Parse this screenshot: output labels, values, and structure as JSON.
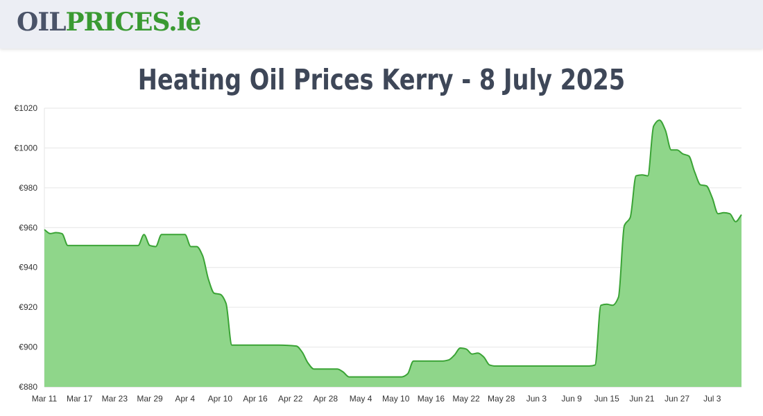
{
  "header": {
    "logo": {
      "part1": "OIL",
      "part2": "PRICES",
      "part3": ".ie"
    }
  },
  "page_title": "Heating Oil Prices Kerry - 8 July 2025",
  "colors": {
    "line": "#3aa335",
    "fill": "#8fd68a",
    "grid": "#e6e6e6",
    "title": "#3e4758"
  },
  "chart_data": {
    "type": "area",
    "title": "",
    "xlabel": "",
    "ylabel": "",
    "ylim": [
      880,
      1020
    ],
    "y_ticks": [
      "€880",
      "€900",
      "€920",
      "€940",
      "€960",
      "€980",
      "€1000",
      "€1020"
    ],
    "y_tick_values": [
      880,
      900,
      920,
      940,
      960,
      980,
      1000,
      1020
    ],
    "x_ticks": [
      "Mar 11",
      "Mar 17",
      "Mar 23",
      "Mar 29",
      "Apr 4",
      "Apr 10",
      "Apr 16",
      "Apr 22",
      "Apr 28",
      "May 4",
      "May 10",
      "May 16",
      "May 22",
      "May 28",
      "Jun 3",
      "Jun 9",
      "Jun 15",
      "Jun 21",
      "Jun 27",
      "Jul 3"
    ],
    "x_tick_days": [
      0,
      6,
      12,
      18,
      24,
      30,
      36,
      42,
      48,
      54,
      60,
      66,
      72,
      78,
      84,
      90,
      96,
      102,
      108,
      114
    ],
    "x_range_days": [
      0,
      119
    ],
    "grid": true,
    "series": [
      {
        "x": [
          0,
          1,
          2,
          3,
          4,
          5,
          6,
          12,
          15,
          16,
          17,
          18,
          19,
          20,
          22,
          24,
          25,
          26,
          27,
          28,
          29,
          30,
          31,
          32,
          33,
          35,
          36,
          40,
          43,
          44,
          45,
          46,
          48,
          50,
          51,
          52,
          53,
          60,
          61,
          62,
          63,
          64,
          67,
          68,
          69,
          70,
          71,
          72,
          73,
          74,
          75,
          76,
          77,
          78,
          82,
          90,
          93,
          94,
          95,
          96,
          97,
          98,
          99,
          100,
          101,
          102,
          103,
          104,
          105,
          106,
          107,
          108,
          109,
          110,
          111,
          112,
          113,
          114,
          115,
          116,
          117,
          118,
          119
        ],
        "values": [
          959,
          957,
          957.5,
          957,
          951,
          951,
          951,
          951,
          951,
          951,
          956.5,
          951,
          950.5,
          956.5,
          956.5,
          956.5,
          950.5,
          950.5,
          946,
          934,
          927,
          926.5,
          922,
          901,
          901,
          901,
          901,
          901,
          900.5,
          897.5,
          892,
          889,
          889,
          889,
          887.5,
          885,
          885,
          885,
          885,
          886.5,
          893,
          893,
          893,
          893,
          893.5,
          896,
          899.5,
          899,
          896.5,
          897,
          895,
          891,
          890.5,
          890.5,
          890.5,
          890.5,
          890.5,
          891,
          921,
          921.5,
          921,
          925,
          961,
          965,
          986,
          986.5,
          986,
          1011,
          1014,
          1009,
          999,
          999,
          997,
          996,
          988,
          981.5,
          981,
          975,
          967,
          967.5,
          967,
          963,
          966.5
        ]
      }
    ]
  }
}
